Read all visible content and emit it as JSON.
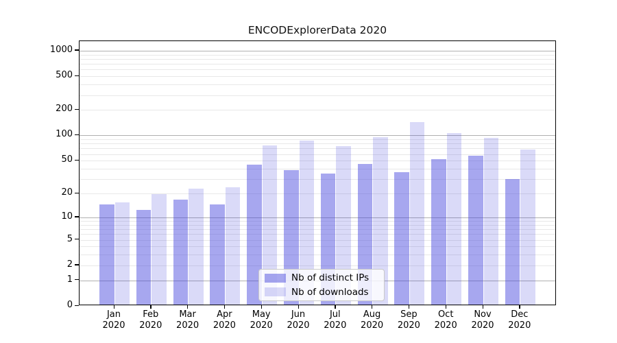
{
  "chart_data": {
    "type": "bar",
    "title": "ENCODExplorerData 2020",
    "categories": [
      {
        "month": "Jan",
        "year": "2020"
      },
      {
        "month": "Feb",
        "year": "2020"
      },
      {
        "month": "Mar",
        "year": "2020"
      },
      {
        "month": "Apr",
        "year": "2020"
      },
      {
        "month": "May",
        "year": "2020"
      },
      {
        "month": "Jun",
        "year": "2020"
      },
      {
        "month": "Jul",
        "year": "2020"
      },
      {
        "month": "Aug",
        "year": "2020"
      },
      {
        "month": "Sep",
        "year": "2020"
      },
      {
        "month": "Oct",
        "year": "2020"
      },
      {
        "month": "Nov",
        "year": "2020"
      },
      {
        "month": "Dec",
        "year": "2020"
      }
    ],
    "series": [
      {
        "name": "Nb of distinct IPs",
        "key": "distinct-ips",
        "color": "rgba(68,68,221,0.47)",
        "values": [
          14,
          12,
          16,
          14,
          43,
          37,
          34,
          44,
          35,
          50,
          55,
          29
        ]
      },
      {
        "name": "Nb of downloads",
        "key": "downloads",
        "color": "rgba(68,68,221,0.2)",
        "values": [
          15,
          19,
          22,
          23,
          73,
          83,
          72,
          92,
          139,
          102,
          90,
          65
        ]
      }
    ],
    "yscale": "log1p",
    "ylim": [
      0,
      1296
    ],
    "yticks": [
      0,
      1,
      2,
      5,
      10,
      20,
      50,
      100,
      200,
      500,
      1000
    ],
    "grid": {
      "major": [
        1,
        10,
        100,
        1000
      ],
      "major_color": "#b0b0b0",
      "minor_color": "#e8e8e8"
    },
    "legend_position": "lower center",
    "xlabel": "",
    "ylabel": ""
  }
}
